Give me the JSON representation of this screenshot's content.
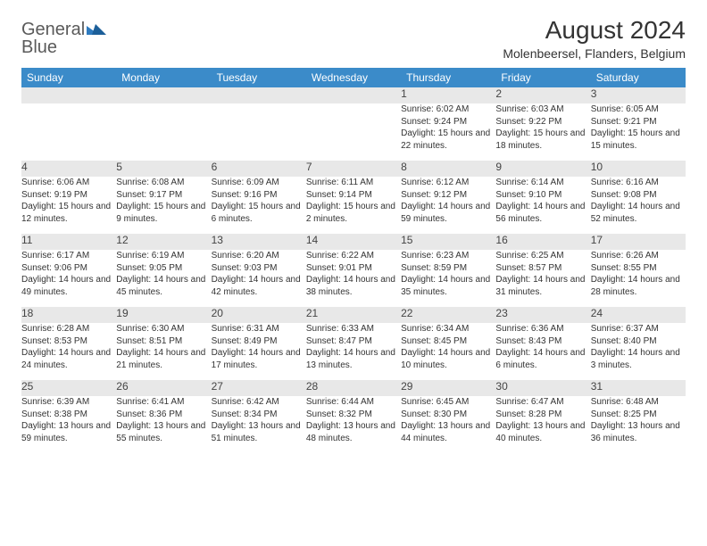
{
  "brand": {
    "part1": "General",
    "part2": "Blue"
  },
  "title": "August 2024",
  "location": "Molenbeersel, Flanders, Belgium",
  "colors": {
    "header_bg": "#3b8bc9",
    "header_text": "#ffffff",
    "daynum_bg": "#e8e8e8",
    "row_border": "#2f6fa8",
    "brand_gray": "#5a5a5a",
    "brand_blue": "#2f7bbf"
  },
  "day_headers": [
    "Sunday",
    "Monday",
    "Tuesday",
    "Wednesday",
    "Thursday",
    "Friday",
    "Saturday"
  ],
  "weeks": [
    {
      "nums": [
        "",
        "",
        "",
        "",
        "1",
        "2",
        "3"
      ],
      "cells": [
        null,
        null,
        null,
        null,
        {
          "sunrise": "6:02 AM",
          "sunset": "9:24 PM",
          "daylight": "15 hours and 22 minutes."
        },
        {
          "sunrise": "6:03 AM",
          "sunset": "9:22 PM",
          "daylight": "15 hours and 18 minutes."
        },
        {
          "sunrise": "6:05 AM",
          "sunset": "9:21 PM",
          "daylight": "15 hours and 15 minutes."
        }
      ]
    },
    {
      "nums": [
        "4",
        "5",
        "6",
        "7",
        "8",
        "9",
        "10"
      ],
      "cells": [
        {
          "sunrise": "6:06 AM",
          "sunset": "9:19 PM",
          "daylight": "15 hours and 12 minutes."
        },
        {
          "sunrise": "6:08 AM",
          "sunset": "9:17 PM",
          "daylight": "15 hours and 9 minutes."
        },
        {
          "sunrise": "6:09 AM",
          "sunset": "9:16 PM",
          "daylight": "15 hours and 6 minutes."
        },
        {
          "sunrise": "6:11 AM",
          "sunset": "9:14 PM",
          "daylight": "15 hours and 2 minutes."
        },
        {
          "sunrise": "6:12 AM",
          "sunset": "9:12 PM",
          "daylight": "14 hours and 59 minutes."
        },
        {
          "sunrise": "6:14 AM",
          "sunset": "9:10 PM",
          "daylight": "14 hours and 56 minutes."
        },
        {
          "sunrise": "6:16 AM",
          "sunset": "9:08 PM",
          "daylight": "14 hours and 52 minutes."
        }
      ]
    },
    {
      "nums": [
        "11",
        "12",
        "13",
        "14",
        "15",
        "16",
        "17"
      ],
      "cells": [
        {
          "sunrise": "6:17 AM",
          "sunset": "9:06 PM",
          "daylight": "14 hours and 49 minutes."
        },
        {
          "sunrise": "6:19 AM",
          "sunset": "9:05 PM",
          "daylight": "14 hours and 45 minutes."
        },
        {
          "sunrise": "6:20 AM",
          "sunset": "9:03 PM",
          "daylight": "14 hours and 42 minutes."
        },
        {
          "sunrise": "6:22 AM",
          "sunset": "9:01 PM",
          "daylight": "14 hours and 38 minutes."
        },
        {
          "sunrise": "6:23 AM",
          "sunset": "8:59 PM",
          "daylight": "14 hours and 35 minutes."
        },
        {
          "sunrise": "6:25 AM",
          "sunset": "8:57 PM",
          "daylight": "14 hours and 31 minutes."
        },
        {
          "sunrise": "6:26 AM",
          "sunset": "8:55 PM",
          "daylight": "14 hours and 28 minutes."
        }
      ]
    },
    {
      "nums": [
        "18",
        "19",
        "20",
        "21",
        "22",
        "23",
        "24"
      ],
      "cells": [
        {
          "sunrise": "6:28 AM",
          "sunset": "8:53 PM",
          "daylight": "14 hours and 24 minutes."
        },
        {
          "sunrise": "6:30 AM",
          "sunset": "8:51 PM",
          "daylight": "14 hours and 21 minutes."
        },
        {
          "sunrise": "6:31 AM",
          "sunset": "8:49 PM",
          "daylight": "14 hours and 17 minutes."
        },
        {
          "sunrise": "6:33 AM",
          "sunset": "8:47 PM",
          "daylight": "14 hours and 13 minutes."
        },
        {
          "sunrise": "6:34 AM",
          "sunset": "8:45 PM",
          "daylight": "14 hours and 10 minutes."
        },
        {
          "sunrise": "6:36 AM",
          "sunset": "8:43 PM",
          "daylight": "14 hours and 6 minutes."
        },
        {
          "sunrise": "6:37 AM",
          "sunset": "8:40 PM",
          "daylight": "14 hours and 3 minutes."
        }
      ]
    },
    {
      "nums": [
        "25",
        "26",
        "27",
        "28",
        "29",
        "30",
        "31"
      ],
      "cells": [
        {
          "sunrise": "6:39 AM",
          "sunset": "8:38 PM",
          "daylight": "13 hours and 59 minutes."
        },
        {
          "sunrise": "6:41 AM",
          "sunset": "8:36 PM",
          "daylight": "13 hours and 55 minutes."
        },
        {
          "sunrise": "6:42 AM",
          "sunset": "8:34 PM",
          "daylight": "13 hours and 51 minutes."
        },
        {
          "sunrise": "6:44 AM",
          "sunset": "8:32 PM",
          "daylight": "13 hours and 48 minutes."
        },
        {
          "sunrise": "6:45 AM",
          "sunset": "8:30 PM",
          "daylight": "13 hours and 44 minutes."
        },
        {
          "sunrise": "6:47 AM",
          "sunset": "8:28 PM",
          "daylight": "13 hours and 40 minutes."
        },
        {
          "sunrise": "6:48 AM",
          "sunset": "8:25 PM",
          "daylight": "13 hours and 36 minutes."
        }
      ]
    }
  ],
  "labels": {
    "sunrise": "Sunrise:",
    "sunset": "Sunset:",
    "daylight": "Daylight:"
  }
}
